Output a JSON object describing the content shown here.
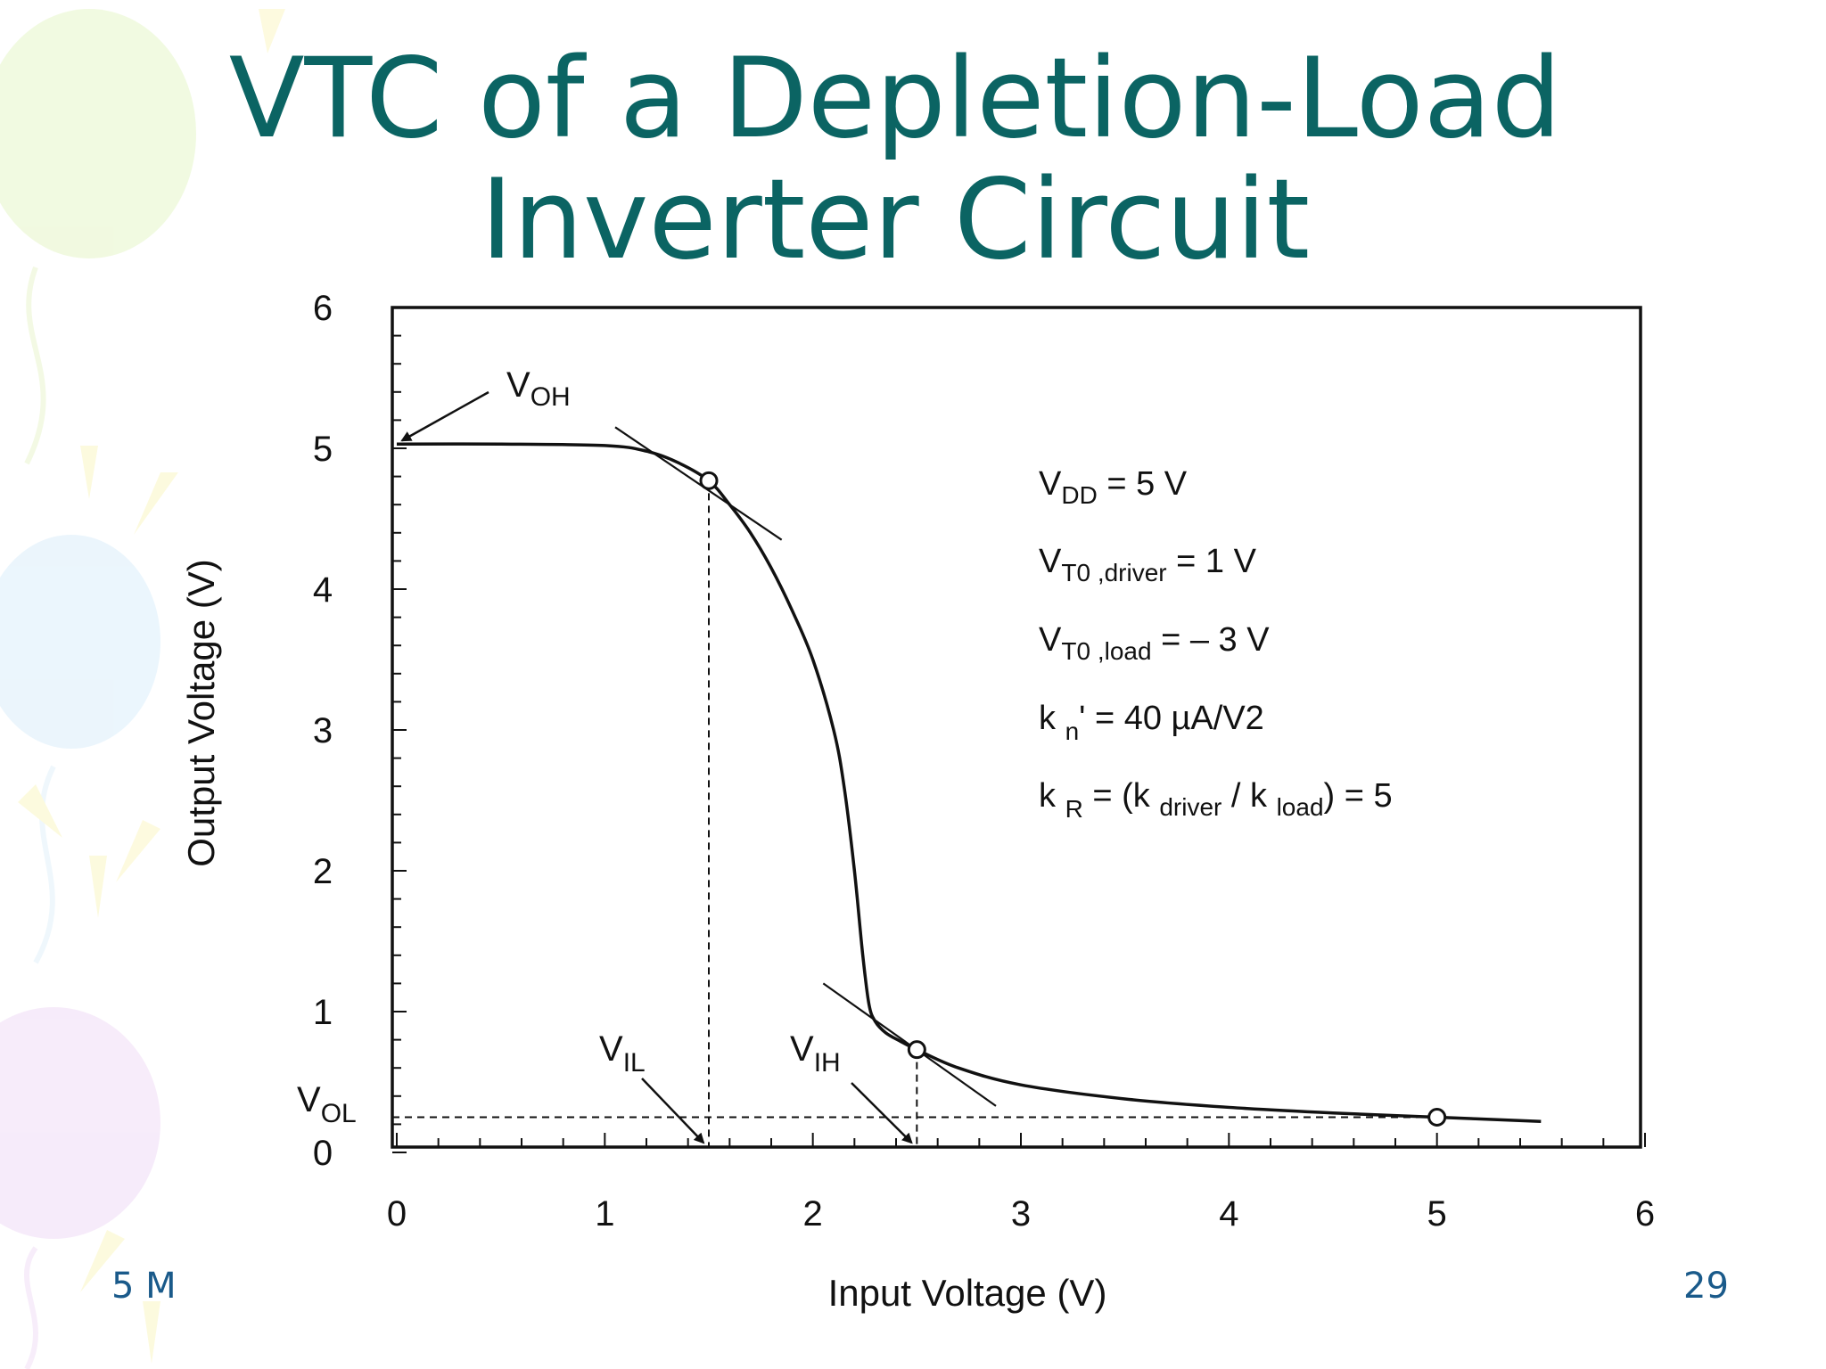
{
  "slide": {
    "title_line1": "VTC of a Depletion-Load",
    "title_line2": "Inverter Circuit",
    "footer_left": "5 M",
    "page_number": "29",
    "title_color": "#0b6463"
  },
  "chart_data": {
    "type": "line",
    "xlabel": "Input Voltage  (V)",
    "ylabel": "Output Voltage  (V)",
    "xlim": [
      0,
      6
    ],
    "ylim": [
      0,
      6
    ],
    "xticks": [
      "0",
      "1",
      "2",
      "3",
      "4",
      "5",
      "6"
    ],
    "yticks": [
      "0",
      "1",
      "2",
      "3",
      "4",
      "5",
      "6"
    ],
    "grid": false,
    "series": [
      {
        "x": [
          0,
          0.5,
          1.0,
          1.2,
          1.35,
          1.5,
          1.6,
          1.7,
          1.8,
          1.9,
          2.0,
          2.1,
          2.15,
          2.2,
          2.24,
          2.27,
          2.3,
          2.35,
          2.42,
          2.5,
          2.7,
          3.0,
          3.5,
          4.0,
          4.5,
          5.0,
          5.5
        ],
        "y": [
          5.03,
          5.03,
          5.02,
          4.98,
          4.9,
          4.77,
          4.6,
          4.4,
          4.15,
          3.85,
          3.5,
          3.0,
          2.6,
          2.0,
          1.4,
          1.05,
          0.93,
          0.85,
          0.79,
          0.73,
          0.6,
          0.48,
          0.38,
          0.32,
          0.28,
          0.25,
          0.22
        ]
      }
    ],
    "critical_points": [
      {
        "x": 1.5,
        "y": 4.77
      },
      {
        "x": 2.5,
        "y": 0.73
      },
      {
        "x": 5.0,
        "y": 0.25
      }
    ],
    "tangent_lines": [
      {
        "x1": 1.05,
        "y1": 5.15,
        "x2": 1.85,
        "y2": 4.35
      },
      {
        "x1": 2.05,
        "y1": 1.2,
        "x2": 2.88,
        "y2": 0.33
      }
    ],
    "annotations": {
      "voh": {
        "main": "V",
        "sub": "OH",
        "value": 5.03
      },
      "vol": {
        "main": "V",
        "sub": "OL",
        "value": 0.25
      },
      "vil": {
        "main": "V",
        "sub": "IL",
        "value": 1.5
      },
      "vih": {
        "main": "V",
        "sub": "IH",
        "value": 2.5
      }
    },
    "parameters": {
      "vdd": {
        "a": "V",
        "b": "DD",
        "c": " = 5 V"
      },
      "vt0_driver": {
        "a": "V",
        "b": "T0 ,driver",
        "c": " = 1 V"
      },
      "vt0_load": {
        "a": "V",
        "b": "T0 ,load",
        "c": " = – 3 V"
      },
      "kn": {
        "a": "k ",
        "b": "n",
        "c": "' =  40 µA/V2"
      },
      "kr": {
        "a": "k ",
        "b": "R",
        "c": " = (k ",
        "d": "driver",
        "e": " / k ",
        "f": "load",
        "g": ") = 5"
      }
    }
  }
}
